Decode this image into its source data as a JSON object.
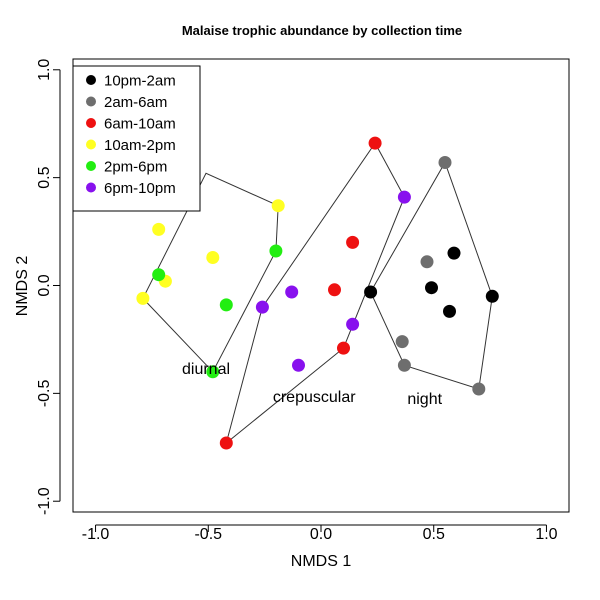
{
  "chart_data": {
    "type": "scatter",
    "title": "Malaise trophic abundance by collection time",
    "xlabel": "NMDS 1",
    "ylabel": "NMDS 2",
    "xlim": [
      -1.1,
      1.1
    ],
    "ylim": [
      -1.05,
      1.05
    ],
    "xticks": [
      -1.0,
      -0.5,
      0.0,
      0.5,
      1.0
    ],
    "xtick_labels": [
      "-1.0",
      "-0.5",
      "0.0",
      "0.5",
      "1.0"
    ],
    "yticks": [
      -1.0,
      -0.5,
      0.0,
      0.5,
      1.0
    ],
    "ytick_labels": [
      "-1.0",
      "-0.5",
      "0.0",
      "0.5",
      "1.0"
    ],
    "grid": false,
    "legend_position": "top-left",
    "series": [
      {
        "name": "10pm-2am",
        "color": "#000000",
        "points": [
          [
            0.22,
            -0.03
          ],
          [
            0.59,
            0.15
          ],
          [
            0.49,
            -0.01
          ],
          [
            0.57,
            -0.12
          ],
          [
            0.76,
            -0.05
          ]
        ]
      },
      {
        "name": "2am-6am",
        "color": "#6e6e6e",
        "points": [
          [
            0.55,
            0.57
          ],
          [
            0.47,
            0.11
          ],
          [
            0.36,
            -0.26
          ],
          [
            0.37,
            -0.37
          ],
          [
            0.7,
            -0.48
          ]
        ]
      },
      {
        "name": "6am-10am",
        "color": "#ee1111",
        "points": [
          [
            0.24,
            0.66
          ],
          [
            0.14,
            0.2
          ],
          [
            0.06,
            -0.02
          ],
          [
            0.1,
            -0.29
          ],
          [
            -0.42,
            -0.73
          ]
        ]
      },
      {
        "name": "10am-2pm",
        "color": "#ffff22",
        "points": [
          [
            -0.19,
            0.37
          ],
          [
            -0.72,
            0.26
          ],
          [
            -0.48,
            0.13
          ],
          [
            -0.69,
            0.02
          ],
          [
            -0.79,
            -0.06
          ]
        ]
      },
      {
        "name": "2pm-6pm",
        "color": "#22ee11",
        "points": [
          [
            -0.2,
            0.16
          ],
          [
            -0.72,
            0.05
          ],
          [
            -0.42,
            -0.09
          ],
          [
            -0.48,
            -0.4
          ]
        ]
      },
      {
        "name": "6pm-10pm",
        "color": "#8811ee",
        "points": [
          [
            0.37,
            0.41
          ],
          [
            -0.13,
            -0.03
          ],
          [
            -0.26,
            -0.1
          ],
          [
            0.14,
            -0.18
          ],
          [
            -0.1,
            -0.37
          ]
        ]
      }
    ],
    "hulls": [
      {
        "label": "diurnal",
        "label_pos": [
          -0.51,
          -0.41
        ],
        "vertices": [
          [
            -0.79,
            -0.06
          ],
          [
            -0.48,
            -0.4
          ],
          [
            -0.2,
            0.16
          ],
          [
            -0.19,
            0.37
          ],
          [
            -0.51,
            0.52
          ]
        ]
      },
      {
        "label": "crepuscular",
        "label_pos": [
          -0.03,
          -0.54
        ],
        "vertices": [
          [
            -0.42,
            -0.73
          ],
          [
            -0.26,
            -0.1
          ],
          [
            0.24,
            0.66
          ],
          [
            0.37,
            0.41
          ],
          [
            0.1,
            -0.29
          ]
        ]
      },
      {
        "label": "night",
        "label_pos": [
          0.46,
          -0.55
        ],
        "vertices": [
          [
            0.22,
            -0.03
          ],
          [
            0.55,
            0.57
          ],
          [
            0.76,
            -0.05
          ],
          [
            0.7,
            -0.48
          ],
          [
            0.37,
            -0.37
          ]
        ]
      }
    ]
  }
}
